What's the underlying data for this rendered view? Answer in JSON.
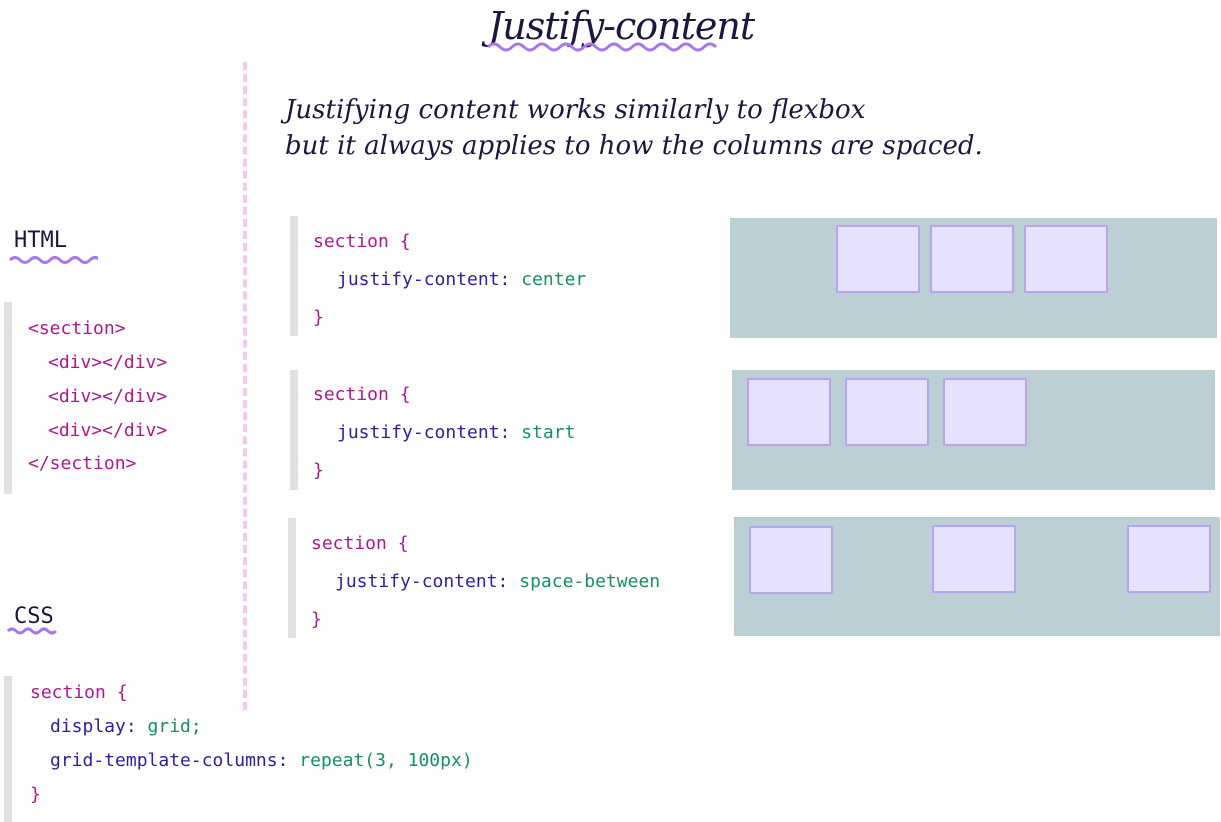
{
  "title": "Justify-content",
  "intro": {
    "line1": "Justifying content works similarly to flexbox",
    "line2": "but it always applies to how the columns are spaced."
  },
  "html_panel": {
    "label": "HTML",
    "lines": [
      "<section>",
      "<div></div>",
      "<div></div>",
      "<div></div>",
      "</section>"
    ]
  },
  "css_panel": {
    "label": "CSS",
    "selector": "section {",
    "decl1_prop": "display:",
    "decl1_val": "grid;",
    "decl2_prop": "grid-template-columns:",
    "decl2_val": "repeat(3, 100px)",
    "close": "}"
  },
  "examples": [
    {
      "selector": "section {",
      "prop": "justify-content:",
      "value": "center",
      "close": "}"
    },
    {
      "selector": "section {",
      "prop": "justify-content:",
      "value": "start",
      "close": "}"
    },
    {
      "selector": "section {",
      "prop": "justify-content:",
      "value": "space-between",
      "close": "}"
    }
  ],
  "colors": {
    "container": "#bccfd5",
    "cell_fill": "#e5e1ff",
    "cell_border": "#b6a6f0",
    "underline": "#a877f0",
    "divider": "#f7c8ef",
    "keyword": "#b0178e",
    "property": "#2b1ea8",
    "value": "#15915e"
  }
}
